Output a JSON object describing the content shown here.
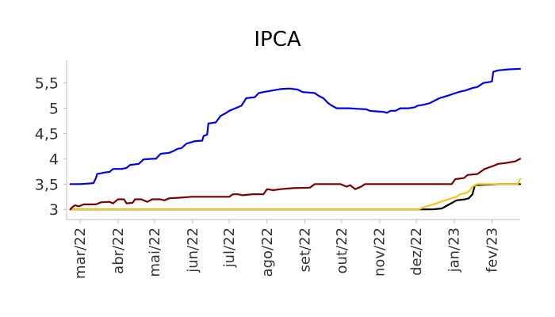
{
  "chart_data": {
    "type": "line",
    "title": "IPCA",
    "xlabel": "",
    "ylabel": "",
    "x_range": [
      "2022-02-18",
      "2023-02-24"
    ],
    "ylim": [
      2.8,
      5.95
    ],
    "grid": false,
    "legend": "none",
    "y_ticks": [
      {
        "value": 3,
        "label": "3"
      },
      {
        "value": 3.5,
        "label": "3,5"
      },
      {
        "value": 4,
        "label": "4"
      },
      {
        "value": 4.5,
        "label": "4,5"
      },
      {
        "value": 5,
        "label": "5"
      },
      {
        "value": 5.5,
        "label": "5,5"
      }
    ],
    "x_ticks": [
      {
        "value": "2022-03-01",
        "label": "mar/22"
      },
      {
        "value": "2022-04-01",
        "label": "abr/22"
      },
      {
        "value": "2022-05-01",
        "label": "mai/22"
      },
      {
        "value": "2022-06-01",
        "label": "jun/22"
      },
      {
        "value": "2022-07-01",
        "label": "jul/22"
      },
      {
        "value": "2022-08-01",
        "label": "ago/22"
      },
      {
        "value": "2022-09-01",
        "label": "set/22"
      },
      {
        "value": "2022-10-01",
        "label": "out/22"
      },
      {
        "value": "2022-11-01",
        "label": "nov/22"
      },
      {
        "value": "2022-12-01",
        "label": "dez/22"
      },
      {
        "value": "2023-01-01",
        "label": "jan/23"
      },
      {
        "value": "2023-02-01",
        "label": "fev/23"
      }
    ],
    "series": [
      {
        "color": "#000000",
        "points": [
          [
            "2022-02-21",
            3.0
          ],
          [
            "2022-12-05",
            3.0
          ],
          [
            "2022-12-15",
            3.0
          ],
          [
            "2022-12-22",
            3.02
          ],
          [
            "2022-12-28",
            3.1
          ],
          [
            "2023-01-03",
            3.18
          ],
          [
            "2023-01-10",
            3.2
          ],
          [
            "2023-01-13",
            3.22
          ],
          [
            "2023-01-16",
            3.3
          ],
          [
            "2023-01-18",
            3.48
          ],
          [
            "2023-02-08",
            3.5
          ],
          [
            "2023-02-24",
            3.5
          ]
        ]
      },
      {
        "color": "#f5c518",
        "points": [
          [
            "2022-02-21",
            3.0
          ],
          [
            "2022-12-03",
            3.0
          ],
          [
            "2022-12-08",
            3.05
          ],
          [
            "2022-12-15",
            3.1
          ],
          [
            "2022-12-21",
            3.15
          ],
          [
            "2022-12-27",
            3.2
          ],
          [
            "2023-01-03",
            3.25
          ],
          [
            "2023-01-06",
            3.3
          ],
          [
            "2023-01-10",
            3.32
          ],
          [
            "2023-01-13",
            3.35
          ],
          [
            "2023-01-16",
            3.45
          ],
          [
            "2023-01-20",
            3.5
          ],
          [
            "2023-02-22",
            3.5
          ],
          [
            "2023-02-24",
            3.6
          ]
        ]
      },
      {
        "color": "#7a0000",
        "points": [
          [
            "2022-02-21",
            3.0
          ],
          [
            "2022-02-23",
            3.05
          ],
          [
            "2022-02-25",
            3.08
          ],
          [
            "2022-02-28",
            3.06
          ],
          [
            "2022-03-04",
            3.1
          ],
          [
            "2022-03-14",
            3.1
          ],
          [
            "2022-03-18",
            3.14
          ],
          [
            "2022-03-25",
            3.15
          ],
          [
            "2022-03-28",
            3.12
          ],
          [
            "2022-04-01",
            3.2
          ],
          [
            "2022-04-06",
            3.2
          ],
          [
            "2022-04-08",
            3.12
          ],
          [
            "2022-04-13",
            3.13
          ],
          [
            "2022-04-15",
            3.2
          ],
          [
            "2022-04-20",
            3.2
          ],
          [
            "2022-04-25",
            3.15
          ],
          [
            "2022-04-29",
            3.2
          ],
          [
            "2022-05-06",
            3.2
          ],
          [
            "2022-05-09",
            3.18
          ],
          [
            "2022-05-13",
            3.22
          ],
          [
            "2022-05-20",
            3.23
          ],
          [
            "2022-05-31",
            3.25
          ],
          [
            "2022-07-01",
            3.25
          ],
          [
            "2022-07-04",
            3.3
          ],
          [
            "2022-07-08",
            3.3
          ],
          [
            "2022-07-12",
            3.28
          ],
          [
            "2022-07-20",
            3.3
          ],
          [
            "2022-07-29",
            3.3
          ],
          [
            "2022-08-01",
            3.4
          ],
          [
            "2022-08-06",
            3.38
          ],
          [
            "2022-08-12",
            3.4
          ],
          [
            "2022-08-22",
            3.42
          ],
          [
            "2022-09-05",
            3.43
          ],
          [
            "2022-09-09",
            3.5
          ],
          [
            "2022-09-30",
            3.5
          ],
          [
            "2022-10-05",
            3.45
          ],
          [
            "2022-10-08",
            3.48
          ],
          [
            "2022-10-12",
            3.4
          ],
          [
            "2022-10-17",
            3.45
          ],
          [
            "2022-10-20",
            3.5
          ],
          [
            "2022-12-30",
            3.5
          ],
          [
            "2023-01-02",
            3.6
          ],
          [
            "2023-01-09",
            3.62
          ],
          [
            "2023-01-12",
            3.68
          ],
          [
            "2023-01-20",
            3.7
          ],
          [
            "2023-01-26",
            3.8
          ],
          [
            "2023-02-01",
            3.85
          ],
          [
            "2023-02-06",
            3.9
          ],
          [
            "2023-02-13",
            3.92
          ],
          [
            "2023-02-20",
            3.95
          ],
          [
            "2023-02-24",
            4.0
          ]
        ]
      },
      {
        "color": "#0000e6",
        "points": [
          [
            "2022-02-21",
            3.5
          ],
          [
            "2022-03-01",
            3.5
          ],
          [
            "2022-03-07",
            3.51
          ],
          [
            "2022-03-12",
            3.52
          ],
          [
            "2022-03-14",
            3.62
          ],
          [
            "2022-03-15",
            3.7
          ],
          [
            "2022-03-21",
            3.73
          ],
          [
            "2022-03-25",
            3.74
          ],
          [
            "2022-03-28",
            3.8
          ],
          [
            "2022-04-04",
            3.8
          ],
          [
            "2022-04-08",
            3.82
          ],
          [
            "2022-04-11",
            3.88
          ],
          [
            "2022-04-18",
            3.9
          ],
          [
            "2022-04-22",
            3.99
          ],
          [
            "2022-04-29",
            4.0
          ],
          [
            "2022-05-02",
            4.0
          ],
          [
            "2022-05-06",
            4.1
          ],
          [
            "2022-05-13",
            4.12
          ],
          [
            "2022-05-16",
            4.15
          ],
          [
            "2022-05-20",
            4.2
          ],
          [
            "2022-05-23",
            4.21
          ],
          [
            "2022-05-27",
            4.3
          ],
          [
            "2022-06-03",
            4.35
          ],
          [
            "2022-06-09",
            4.36
          ],
          [
            "2022-06-10",
            4.45
          ],
          [
            "2022-06-13",
            4.48
          ],
          [
            "2022-06-14",
            4.7
          ],
          [
            "2022-06-20",
            4.72
          ],
          [
            "2022-06-24",
            4.85
          ],
          [
            "2022-06-28",
            4.9
          ],
          [
            "2022-07-01",
            4.95
          ],
          [
            "2022-07-06",
            5.0
          ],
          [
            "2022-07-11",
            5.05
          ],
          [
            "2022-07-15",
            5.2
          ],
          [
            "2022-07-22",
            5.22
          ],
          [
            "2022-07-25",
            5.3
          ],
          [
            "2022-07-29",
            5.32
          ],
          [
            "2022-08-05",
            5.35
          ],
          [
            "2022-08-12",
            5.38
          ],
          [
            "2022-08-19",
            5.39
          ],
          [
            "2022-08-26",
            5.37
          ],
          [
            "2022-08-30",
            5.32
          ],
          [
            "2022-09-05",
            5.31
          ],
          [
            "2022-09-09",
            5.3
          ],
          [
            "2022-09-12",
            5.25
          ],
          [
            "2022-09-16",
            5.2
          ],
          [
            "2022-09-20",
            5.1
          ],
          [
            "2022-09-23",
            5.05
          ],
          [
            "2022-09-27",
            5.0
          ],
          [
            "2022-10-07",
            5.0
          ],
          [
            "2022-10-14",
            4.99
          ],
          [
            "2022-10-21",
            4.98
          ],
          [
            "2022-10-24",
            4.95
          ],
          [
            "2022-10-28",
            4.94
          ],
          [
            "2022-11-04",
            4.93
          ],
          [
            "2022-11-07",
            4.91
          ],
          [
            "2022-11-10",
            4.95
          ],
          [
            "2022-11-14",
            4.95
          ],
          [
            "2022-11-18",
            5.0
          ],
          [
            "2022-11-25",
            5.0
          ],
          [
            "2022-11-30",
            5.02
          ],
          [
            "2022-12-02",
            5.05
          ],
          [
            "2022-12-07",
            5.07
          ],
          [
            "2022-12-12",
            5.1
          ],
          [
            "2022-12-16",
            5.15
          ],
          [
            "2022-12-20",
            5.2
          ],
          [
            "2022-12-27",
            5.25
          ],
          [
            "2023-01-02",
            5.3
          ],
          [
            "2023-01-06",
            5.33
          ],
          [
            "2023-01-10",
            5.35
          ],
          [
            "2023-01-16",
            5.4
          ],
          [
            "2023-01-20",
            5.42
          ],
          [
            "2023-01-25",
            5.5
          ],
          [
            "2023-01-30",
            5.52
          ],
          [
            "2023-02-01",
            5.53
          ],
          [
            "2023-02-02",
            5.72
          ],
          [
            "2023-02-06",
            5.75
          ],
          [
            "2023-02-15",
            5.77
          ],
          [
            "2023-02-24",
            5.78
          ]
        ]
      }
    ]
  }
}
